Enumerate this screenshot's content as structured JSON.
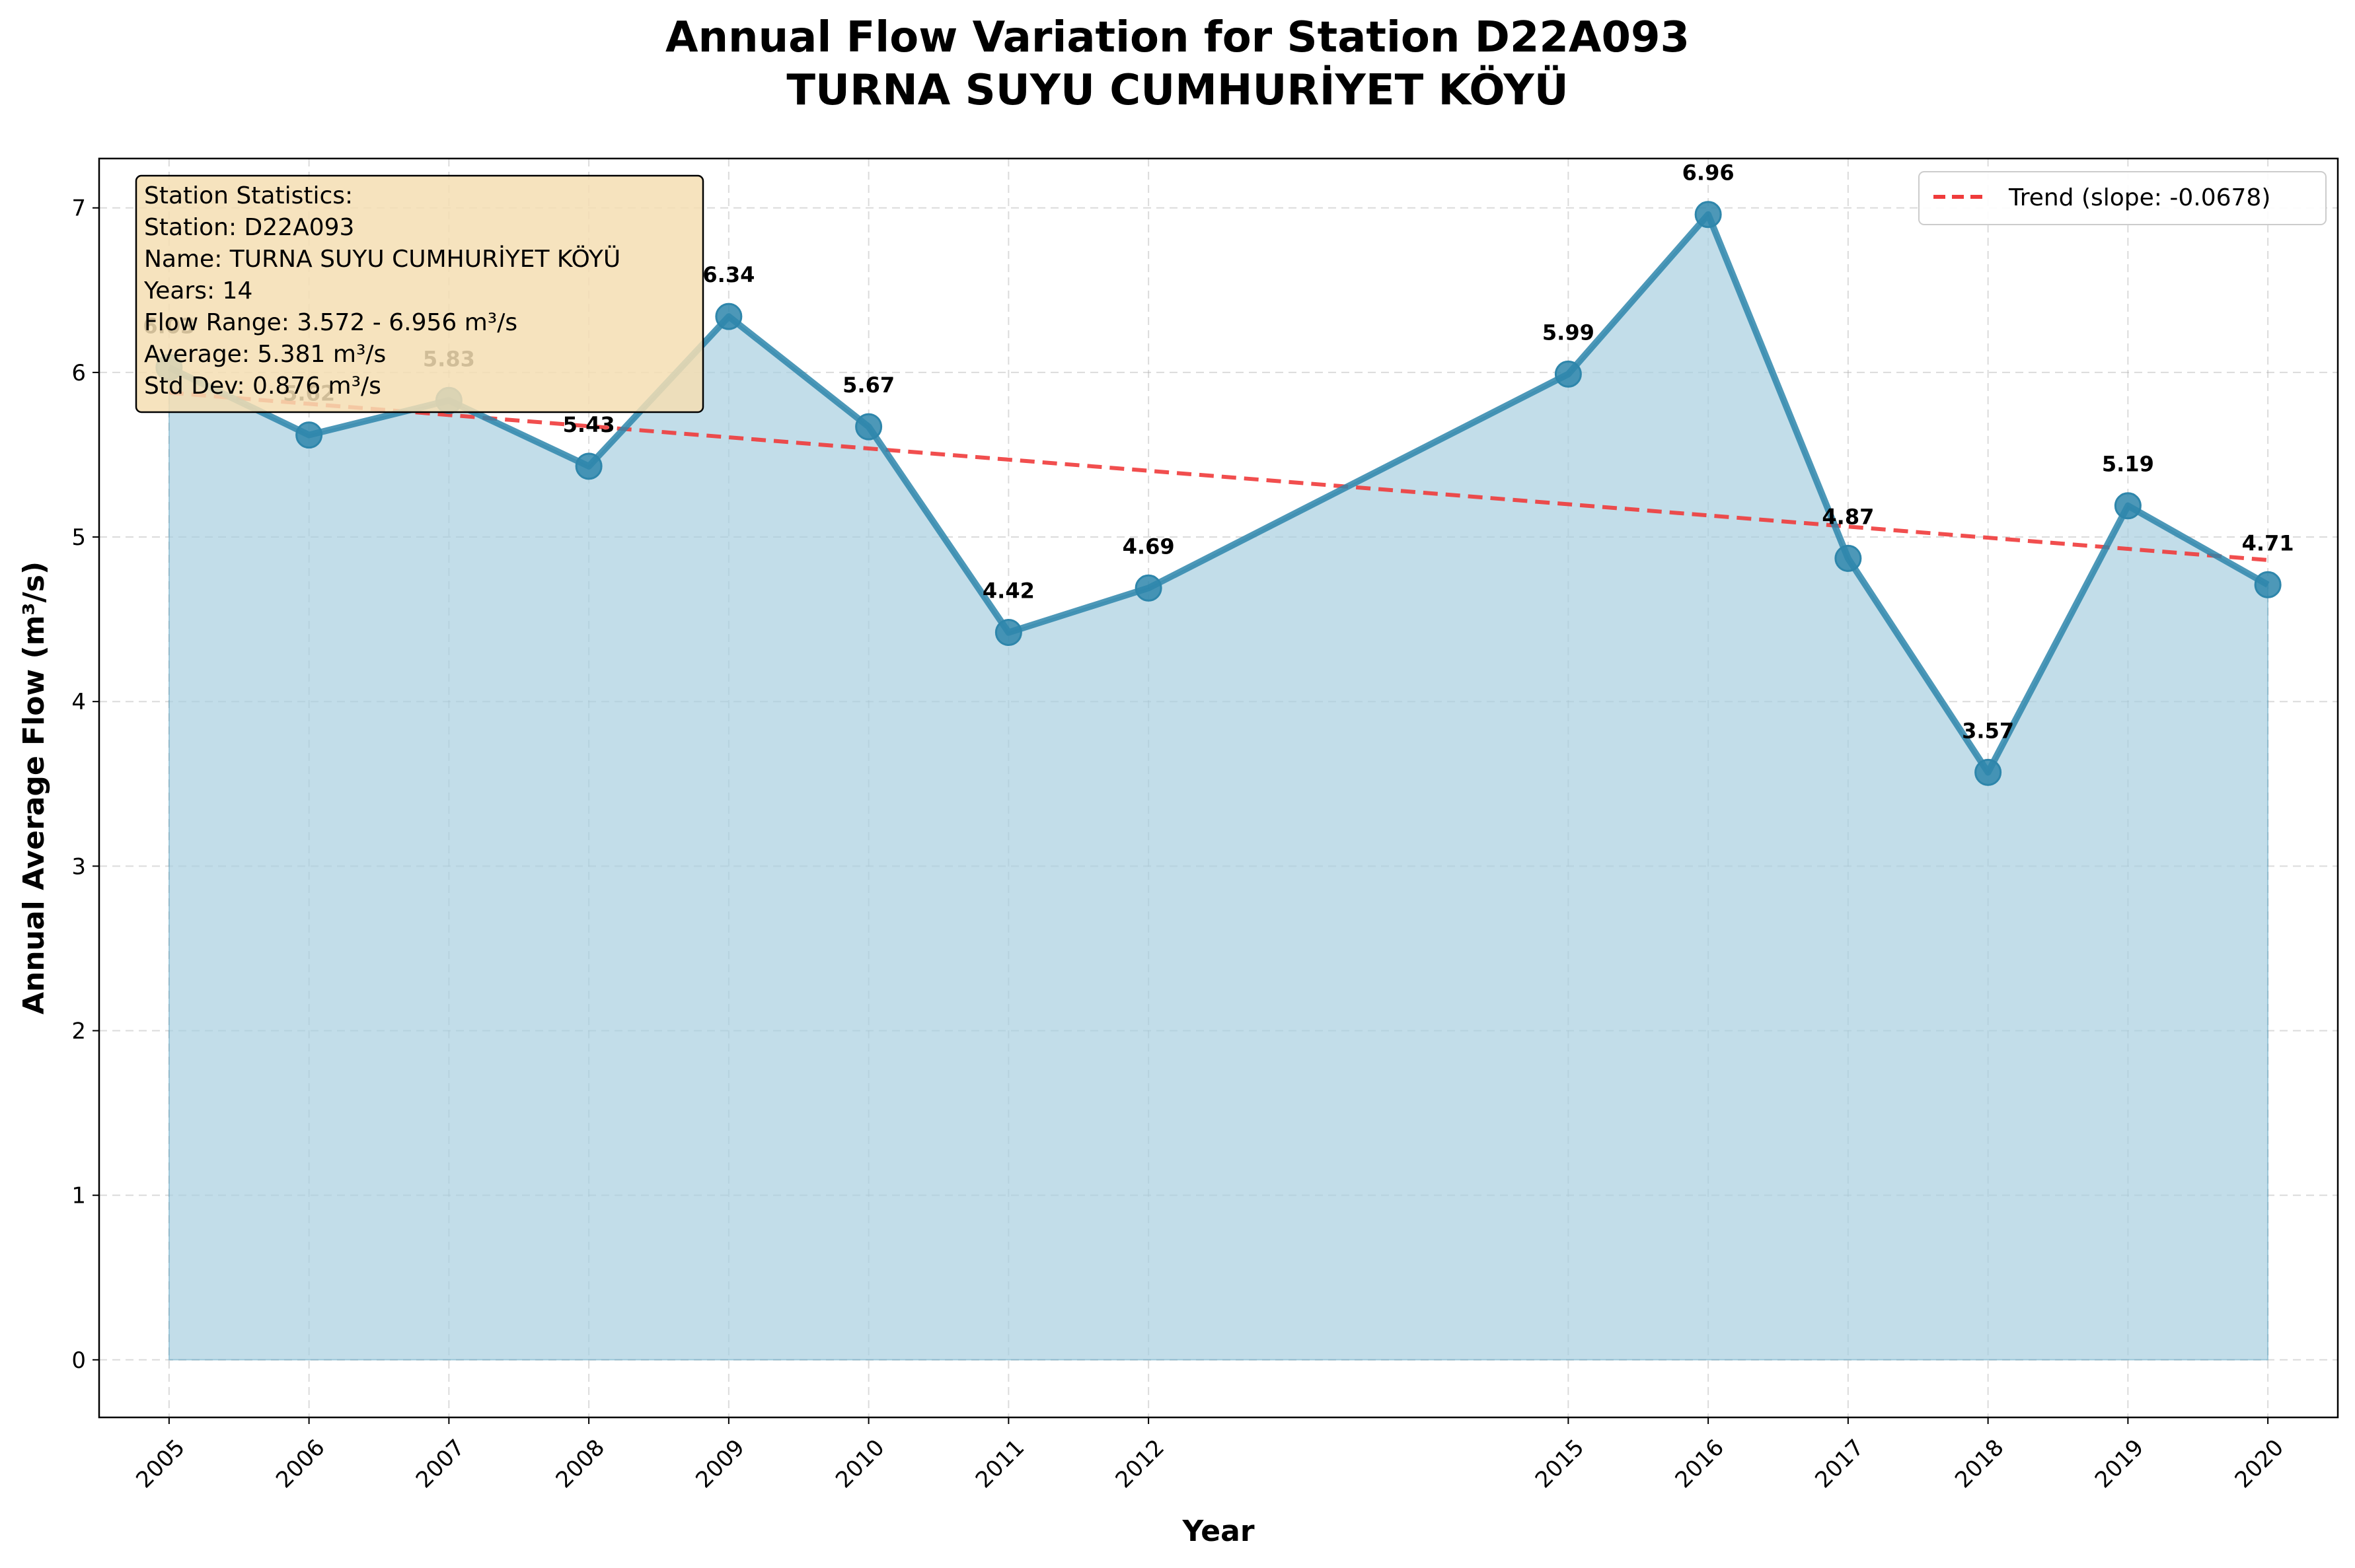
{
  "chart_data": {
    "type": "line",
    "title": "Annual Flow Variation for Station D22A093",
    "subtitle": "TURNA SUYU CUMHURİYET KÖYÜ",
    "xlabel": "Year",
    "ylabel": "Annual Average Flow (m³/s)",
    "ylim": [
      -0.35,
      7.3
    ],
    "xlim": [
      2004.5,
      2020.5
    ],
    "y_ticks": [
      0,
      1,
      2,
      3,
      4,
      5,
      6,
      7
    ],
    "grid": true,
    "legend_position": "top-right",
    "x": [
      2005,
      2006,
      2007,
      2008,
      2009,
      2010,
      2011,
      2012,
      2015,
      2016,
      2017,
      2018,
      2019,
      2020
    ],
    "series": [
      {
        "name": "",
        "values": [
          6.03,
          5.62,
          5.83,
          5.43,
          6.34,
          5.67,
          4.42,
          4.69,
          5.99,
          6.96,
          4.87,
          3.57,
          5.19,
          4.71
        ],
        "labels": [
          "6.03",
          "5.62",
          "5.83",
          "5.43",
          "6.34",
          "5.67",
          "4.42",
          "4.69",
          "5.99",
          "6.96",
          "4.87",
          "3.57",
          "5.19",
          "4.71"
        ],
        "color": "#2e86ab",
        "fill_color": "#a8cfdf"
      }
    ],
    "trend": {
      "name": "Trend (slope: -0.0678)",
      "x": [
        2005,
        2020
      ],
      "values": [
        5.877,
        4.86
      ],
      "color": "#ef3b3b"
    },
    "stats_box": {
      "lines": [
        "Station Statistics:",
        "Station: D22A093",
        "Name: TURNA SUYU CUMHURİYET KÖYÜ",
        "Years: 14",
        "Flow Range: 3.572 - 6.956 m³/s",
        "Average: 5.381 m³/s",
        "Std Dev: 0.876 m³/s"
      ],
      "background": "#f5deb3"
    }
  }
}
